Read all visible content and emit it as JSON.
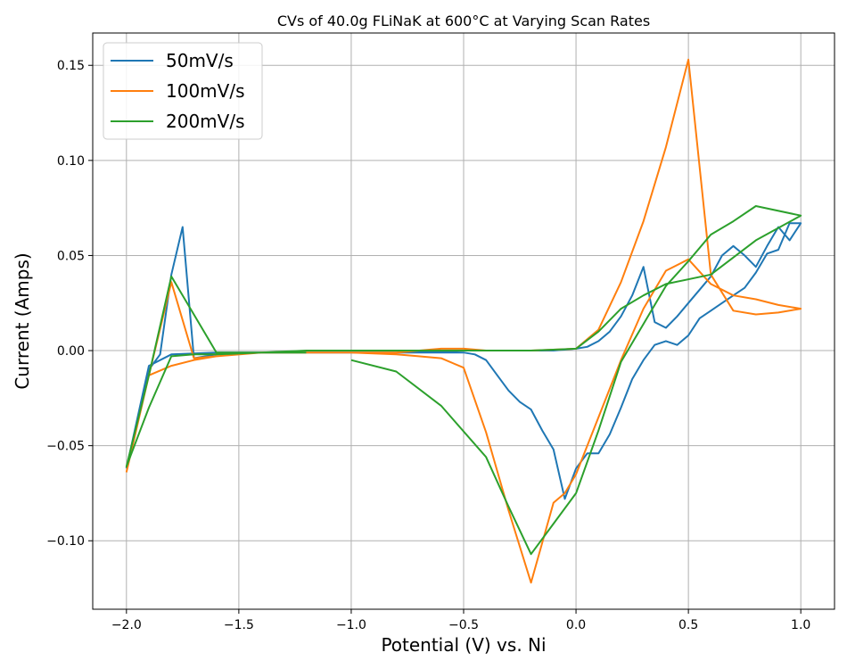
{
  "chart_data": {
    "type": "line",
    "title": "CVs of 40.0g FLiNaK at 600°C at Varying Scan Rates",
    "xlabel": "Potential (V) vs. Ni",
    "ylabel": "Current (Amps)",
    "xlim": [
      -2.15,
      1.15
    ],
    "ylim": [
      -0.136,
      0.167
    ],
    "x_ticks": [
      -2.0,
      -1.5,
      -1.0,
      -0.5,
      0.0,
      0.5,
      1.0
    ],
    "x_tick_labels": [
      "−2.0",
      "−1.5",
      "−1.0",
      "−0.5",
      "0.0",
      "0.5",
      "1.0"
    ],
    "y_ticks": [
      -0.1,
      -0.05,
      0.0,
      0.05,
      0.1,
      0.15
    ],
    "y_tick_labels": [
      "−0.10",
      "−0.05",
      "0.00",
      "0.05",
      "0.10",
      "0.15"
    ],
    "grid": true,
    "legend_position": "top-left",
    "series": [
      {
        "name": "50mV/s",
        "color": "#1f77b4",
        "points": [
          [
            -2.0,
            -0.062
          ],
          [
            -1.9,
            -0.01
          ],
          [
            -1.85,
            -0.002
          ],
          [
            -1.8,
            0.04
          ],
          [
            -1.75,
            0.065
          ],
          [
            -1.7,
            -0.004
          ],
          [
            -1.6,
            -0.002
          ],
          [
            -1.4,
            -0.001
          ],
          [
            -1.0,
            -0.001
          ],
          [
            -0.8,
            -0.001
          ],
          [
            -0.6,
            -0.001
          ],
          [
            -0.5,
            -0.001
          ],
          [
            -0.45,
            -0.002
          ],
          [
            -0.4,
            -0.005
          ],
          [
            -0.35,
            -0.013
          ],
          [
            -0.3,
            -0.021
          ],
          [
            -0.25,
            -0.027
          ],
          [
            -0.2,
            -0.031
          ],
          [
            -0.15,
            -0.042
          ],
          [
            -0.1,
            -0.052
          ],
          [
            -0.05,
            -0.078
          ],
          [
            0.0,
            -0.062
          ],
          [
            0.05,
            -0.054
          ],
          [
            0.1,
            -0.054
          ],
          [
            0.15,
            -0.044
          ],
          [
            0.2,
            -0.03
          ],
          [
            0.25,
            -0.015
          ],
          [
            0.3,
            -0.005
          ],
          [
            0.35,
            0.003
          ],
          [
            0.4,
            0.005
          ],
          [
            0.45,
            0.003
          ],
          [
            0.5,
            0.008
          ],
          [
            0.55,
            0.017
          ],
          [
            0.6,
            0.021
          ],
          [
            0.65,
            0.025
          ],
          [
            0.7,
            0.029
          ],
          [
            0.75,
            0.033
          ],
          [
            0.8,
            0.041
          ],
          [
            0.85,
            0.051
          ],
          [
            0.9,
            0.053
          ],
          [
            0.95,
            0.067
          ],
          [
            1.0,
            0.067
          ],
          [
            0.95,
            0.058
          ],
          [
            0.9,
            0.065
          ],
          [
            0.85,
            0.055
          ],
          [
            0.8,
            0.044
          ],
          [
            0.75,
            0.05
          ],
          [
            0.7,
            0.055
          ],
          [
            0.65,
            0.05
          ],
          [
            0.6,
            0.039
          ],
          [
            0.55,
            0.032
          ],
          [
            0.5,
            0.025
          ],
          [
            0.45,
            0.018
          ],
          [
            0.4,
            0.012
          ],
          [
            0.35,
            0.015
          ],
          [
            0.3,
            0.044
          ],
          [
            0.25,
            0.029
          ],
          [
            0.2,
            0.018
          ],
          [
            0.15,
            0.01
          ],
          [
            0.1,
            0.005
          ],
          [
            0.05,
            0.002
          ],
          [
            0.0,
            0.001
          ],
          [
            -0.1,
            0.0
          ],
          [
            -0.3,
            0.0
          ],
          [
            -0.5,
            0.0
          ],
          [
            -0.8,
            -0.001
          ],
          [
            -1.0,
            -0.001
          ],
          [
            -1.3,
            -0.001
          ],
          [
            -1.6,
            -0.001
          ],
          [
            -1.8,
            -0.002
          ],
          [
            -1.9,
            -0.008
          ],
          [
            -2.0,
            -0.062
          ]
        ]
      },
      {
        "name": "100mV/s",
        "color": "#ff7f0e",
        "points": [
          [
            -2.0,
            -0.064
          ],
          [
            -1.9,
            -0.013
          ],
          [
            -1.8,
            -0.008
          ],
          [
            -1.7,
            -0.005
          ],
          [
            -1.6,
            -0.003
          ],
          [
            -1.4,
            -0.001
          ],
          [
            -1.0,
            -0.001
          ],
          [
            -0.8,
            -0.002
          ],
          [
            -0.7,
            -0.003
          ],
          [
            -0.6,
            -0.004
          ],
          [
            -0.5,
            -0.009
          ],
          [
            -0.4,
            -0.043
          ],
          [
            -0.3,
            -0.084
          ],
          [
            -0.2,
            -0.122
          ],
          [
            -0.1,
            -0.08
          ],
          [
            -0.05,
            -0.075
          ],
          [
            0.0,
            -0.065
          ],
          [
            0.1,
            -0.035
          ],
          [
            0.2,
            -0.005
          ],
          [
            0.3,
            0.022
          ],
          [
            0.4,
            0.042
          ],
          [
            0.5,
            0.048
          ],
          [
            0.6,
            0.035
          ],
          [
            0.7,
            0.029
          ],
          [
            0.8,
            0.027
          ],
          [
            0.9,
            0.024
          ],
          [
            1.0,
            0.022
          ],
          [
            0.9,
            0.02
          ],
          [
            0.8,
            0.019
          ],
          [
            0.7,
            0.021
          ],
          [
            0.6,
            0.04
          ],
          [
            0.5,
            0.153
          ],
          [
            0.4,
            0.107
          ],
          [
            0.3,
            0.068
          ],
          [
            0.2,
            0.036
          ],
          [
            0.1,
            0.011
          ],
          [
            0.0,
            0.001
          ],
          [
            -0.2,
            0.0
          ],
          [
            -0.4,
            0.0
          ],
          [
            -0.5,
            0.001
          ],
          [
            -0.6,
            0.001
          ],
          [
            -0.8,
            -0.001
          ],
          [
            -1.0,
            -0.001
          ],
          [
            -1.4,
            -0.001
          ],
          [
            -1.7,
            -0.004
          ],
          [
            -1.8,
            0.036
          ],
          [
            -1.9,
            -0.013
          ],
          [
            -2.0,
            -0.064
          ]
        ]
      },
      {
        "name": "200mV/s",
        "color": "#2ca02c",
        "points": [
          [
            -1.0,
            -0.005
          ],
          [
            -0.8,
            -0.011
          ],
          [
            -0.6,
            -0.029
          ],
          [
            -0.4,
            -0.056
          ],
          [
            -0.3,
            -0.082
          ],
          [
            -0.2,
            -0.107
          ],
          [
            -0.1,
            -0.091
          ],
          [
            0.0,
            -0.075
          ],
          [
            0.1,
            -0.042
          ],
          [
            0.2,
            -0.006
          ],
          [
            0.3,
            0.014
          ],
          [
            0.4,
            0.034
          ],
          [
            0.5,
            0.047
          ],
          [
            0.6,
            0.061
          ],
          [
            0.7,
            0.068
          ],
          [
            0.8,
            0.076
          ],
          [
            1.0,
            0.071
          ],
          [
            0.8,
            0.058
          ],
          [
            0.6,
            0.04
          ],
          [
            0.4,
            0.035
          ],
          [
            0.3,
            0.029
          ],
          [
            0.2,
            0.022
          ],
          [
            0.1,
            0.01
          ],
          [
            0.0,
            0.001
          ],
          [
            -0.2,
            0.0
          ],
          [
            -0.4,
            0.0
          ],
          [
            -0.6,
            0.0
          ],
          [
            -0.8,
            0.0
          ],
          [
            -1.0,
            0.0
          ],
          [
            -1.2,
            0.0
          ],
          [
            -1.4,
            -0.001
          ],
          [
            -1.6,
            -0.001
          ],
          [
            -1.8,
            0.039
          ],
          [
            -1.9,
            -0.013
          ],
          [
            -2.0,
            -0.061
          ],
          [
            -1.9,
            -0.03
          ],
          [
            -1.8,
            -0.003
          ],
          [
            -1.7,
            -0.002
          ],
          [
            -1.6,
            -0.002
          ],
          [
            -1.4,
            -0.001
          ],
          [
            -1.2,
            -0.001
          ]
        ]
      }
    ]
  }
}
